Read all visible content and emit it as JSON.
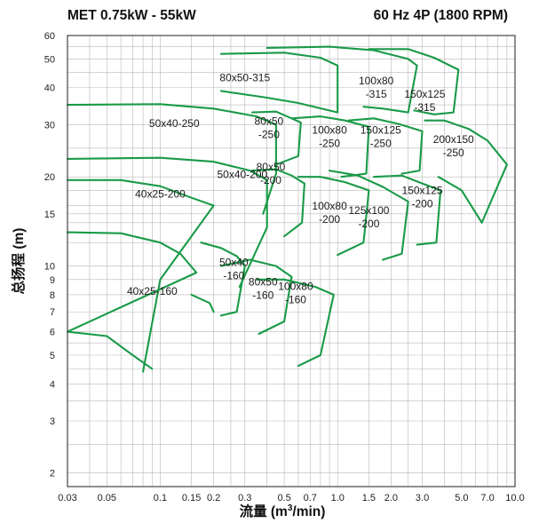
{
  "header": {
    "title_left": "MET  0.75kW - 55kW",
    "title_right": "60 Hz 4P (1800 RPM)"
  },
  "chart_data": {
    "type": "line",
    "title": "MET  0.75kW - 55kW",
    "subtitle": "60 Hz 4P (1800 RPM)",
    "xlabel": "流量 (m³/min)",
    "ylabel": "总扬程 (m)",
    "x_scale": "log",
    "y_scale": "log",
    "xlim": [
      0.03,
      10.0
    ],
    "ylim": [
      1.8,
      60
    ],
    "grid": true,
    "x_ticks": [
      {
        "v": 0.03,
        "label": "0.03"
      },
      {
        "v": 0.05,
        "label": "0.05"
      },
      {
        "v": 0.1,
        "label": "0.1"
      },
      {
        "v": 0.15,
        "label": "0.15"
      },
      {
        "v": 0.2,
        "label": "0.2"
      },
      {
        "v": 0.3,
        "label": "0.3"
      },
      {
        "v": 0.5,
        "label": "0.5"
      },
      {
        "v": 0.7,
        "label": "0.7"
      },
      {
        "v": 1.0,
        "label": "1.0"
      },
      {
        "v": 1.5,
        "label": "1.5"
      },
      {
        "v": 2.0,
        "label": "2.0"
      },
      {
        "v": 3.0,
        "label": "3.0"
      },
      {
        "v": 5.0,
        "label": "5.0"
      },
      {
        "v": 7.0,
        "label": "7.0"
      },
      {
        "v": 10.0,
        "label": "10.0"
      }
    ],
    "x_grid": [
      0.03,
      0.04,
      0.05,
      0.06,
      0.07,
      0.08,
      0.09,
      0.1,
      0.15,
      0.2,
      0.25,
      0.3,
      0.4,
      0.5,
      0.6,
      0.7,
      0.8,
      0.9,
      1.0,
      1.5,
      2.0,
      2.5,
      3.0,
      4.0,
      5.0,
      6.0,
      7.0,
      8.0,
      9.0,
      10.0
    ],
    "y_ticks": [
      {
        "v": 2,
        "label": "2"
      },
      {
        "v": 3,
        "label": "3"
      },
      {
        "v": 4,
        "label": "4"
      },
      {
        "v": 5,
        "label": "5"
      },
      {
        "v": 6,
        "label": "6"
      },
      {
        "v": 7,
        "label": "7"
      },
      {
        "v": 8,
        "label": "8"
      },
      {
        "v": 9,
        "label": "9"
      },
      {
        "v": 10,
        "label": "10"
      },
      {
        "v": 15,
        "label": "15"
      },
      {
        "v": 20,
        "label": "20"
      },
      {
        "v": 30,
        "label": "30"
      },
      {
        "v": 40,
        "label": "40"
      },
      {
        "v": 50,
        "label": "50"
      },
      {
        "v": 60,
        "label": "60"
      }
    ],
    "y_grid": [
      2,
      2.5,
      3,
      3.5,
      4,
      4.5,
      5,
      5.5,
      6,
      7,
      8,
      9,
      10,
      12,
      14,
      15,
      16,
      18,
      20,
      25,
      30,
      35,
      40,
      45,
      50,
      55,
      60
    ],
    "colors": {
      "curve": "#1a9a48",
      "grid": "#b8b8b8",
      "frame": "#333333"
    },
    "series": [
      {
        "name": "40x25-160",
        "label_lines": [
          "40x25-160"
        ],
        "label_at": [
          0.09,
          8.0
        ],
        "top": [
          [
            0.03,
            13.0
          ],
          [
            0.06,
            12.9
          ],
          [
            0.1,
            12.0
          ],
          [
            0.13,
            11.0
          ],
          [
            0.16,
            9.5
          ]
        ],
        "bottom": [
          [
            0.03,
            6.0
          ],
          [
            0.05,
            5.8
          ],
          [
            0.07,
            5.0
          ],
          [
            0.09,
            4.5
          ]
        ]
      },
      {
        "name": "40x25-200",
        "label_lines": [
          "40x25-200"
        ],
        "label_at": [
          0.1,
          17.0
        ],
        "top": [
          [
            0.03,
            19.5
          ],
          [
            0.06,
            19.5
          ],
          [
            0.1,
            18.6
          ],
          [
            0.15,
            17.0
          ],
          [
            0.2,
            16.0
          ]
        ],
        "bottom": [
          [
            0.1,
            9.0
          ],
          [
            0.08,
            4.4
          ]
        ]
      },
      {
        "name": "50x40-200",
        "label_lines": [
          "50x40-200"
        ],
        "label_at": [
          0.29,
          19.8
        ],
        "top": [
          [
            0.03,
            23.0
          ],
          [
            0.1,
            23.2
          ],
          [
            0.2,
            22.5
          ],
          [
            0.32,
            21.0
          ],
          [
            0.4,
            19.5
          ]
        ],
        "bottom": [
          [
            0.4,
            13.5
          ],
          [
            0.28,
            8.5
          ]
        ]
      },
      {
        "name": "50x40-250",
        "label_lines": [
          "50x40-250"
        ],
        "label_at": [
          0.12,
          29.5
        ],
        "top": [
          [
            0.03,
            35.0
          ],
          [
            0.1,
            35.2
          ],
          [
            0.2,
            34.0
          ],
          [
            0.35,
            32.0
          ],
          [
            0.45,
            30.0
          ]
        ],
        "bottom": [
          [
            0.45,
            20.5
          ],
          [
            0.38,
            15.0
          ]
        ]
      },
      {
        "name": "40x25-160-lower",
        "label_lines": [],
        "label_at": null,
        "top": [
          [
            0.15,
            8.0
          ],
          [
            0.19,
            7.5
          ],
          [
            0.2,
            7.0
          ]
        ],
        "bottom": []
      },
      {
        "name": "50x40-160",
        "label_lines": [
          "50x40",
          "-160"
        ],
        "label_at": [
          0.26,
          10.0
        ],
        "top": [
          [
            0.17,
            12.0
          ],
          [
            0.22,
            11.5
          ],
          [
            0.27,
            10.8
          ],
          [
            0.3,
            10.0
          ]
        ],
        "bottom": [
          [
            0.27,
            7.0
          ],
          [
            0.22,
            6.8
          ]
        ]
      },
      {
        "name": "80x50-160",
        "label_lines": [
          "80x50",
          "-160"
        ],
        "label_at": [
          0.38,
          8.6
        ],
        "top": [
          [
            0.22,
            10.0
          ],
          [
            0.32,
            10.5
          ],
          [
            0.45,
            10.0
          ],
          [
            0.55,
            9.2
          ]
        ],
        "bottom": [
          [
            0.5,
            6.5
          ],
          [
            0.36,
            5.9
          ]
        ]
      },
      {
        "name": "100x80-160",
        "label_lines": [
          "100x80",
          "-160"
        ],
        "label_at": [
          0.58,
          8.3
        ],
        "top": [
          [
            0.35,
            9.0
          ],
          [
            0.5,
            9.0
          ],
          [
            0.75,
            8.5
          ],
          [
            0.95,
            8.0
          ]
        ],
        "bottom": [
          [
            0.8,
            5.0
          ],
          [
            0.6,
            4.6
          ]
        ]
      },
      {
        "name": "80x50-200",
        "label_lines": [
          "80x50",
          "-200"
        ],
        "label_at": [
          0.42,
          21.0
        ],
        "top": [
          [
            0.33,
            21.0
          ],
          [
            0.45,
            21.2
          ],
          [
            0.55,
            20.2
          ],
          [
            0.65,
            19.0
          ]
        ],
        "bottom": [
          [
            0.63,
            14.0
          ],
          [
            0.5,
            12.6
          ]
        ]
      },
      {
        "name": "100x80-200",
        "label_lines": [
          "100x80",
          "-200"
        ],
        "label_at": [
          0.9,
          15.5
        ],
        "top": [
          [
            0.6,
            20.0
          ],
          [
            0.8,
            20.0
          ],
          [
            1.1,
            19.2
          ],
          [
            1.5,
            18.0
          ]
        ],
        "bottom": [
          [
            1.4,
            12.0
          ],
          [
            1.0,
            10.9
          ]
        ]
      },
      {
        "name": "125x100-200",
        "label_lines": [
          "125x100",
          "-200"
        ],
        "label_at": [
          1.5,
          15.0
        ],
        "top": [
          [
            0.9,
            21.0
          ],
          [
            1.3,
            20.2
          ],
          [
            1.8,
            18.5
          ],
          [
            2.5,
            16.5
          ]
        ],
        "bottom": [
          [
            2.3,
            11.0
          ],
          [
            1.8,
            10.5
          ]
        ]
      },
      {
        "name": "150x125-200",
        "label_lines": [
          "150x125",
          "-200"
        ],
        "label_at": [
          3.0,
          17.5
        ],
        "top": [
          [
            1.6,
            20.0
          ],
          [
            2.3,
            20.2
          ],
          [
            3.0,
            19.0
          ],
          [
            3.8,
            18.0
          ]
        ],
        "bottom": [
          [
            3.6,
            12.0
          ],
          [
            2.8,
            11.8
          ]
        ]
      },
      {
        "name": "80x50-250",
        "label_lines": [
          "80x50",
          "-250"
        ],
        "label_at": [
          0.41,
          30.0
        ],
        "top": [
          [
            0.33,
            33.0
          ],
          [
            0.45,
            33.2
          ],
          [
            0.55,
            31.5
          ],
          [
            0.62,
            30.5
          ]
        ],
        "bottom": [
          [
            0.6,
            23.5
          ],
          [
            0.45,
            22.0
          ]
        ]
      },
      {
        "name": "100x80-250",
        "label_lines": [
          "100x80",
          "-250"
        ],
        "label_at": [
          0.9,
          28.0
        ],
        "top": [
          [
            0.55,
            31.5
          ],
          [
            0.8,
            32.0
          ],
          [
            1.1,
            31.0
          ],
          [
            1.5,
            29.5
          ]
        ],
        "bottom": [
          [
            1.45,
            20.5
          ],
          [
            1.05,
            20.0
          ]
        ]
      },
      {
        "name": "150x125-250",
        "label_lines": [
          "150x125",
          "-250"
        ],
        "label_at": [
          1.75,
          28.0
        ],
        "top": [
          [
            1.15,
            31.0
          ],
          [
            1.6,
            31.5
          ],
          [
            2.2,
            30.2
          ],
          [
            3.0,
            28.5
          ]
        ],
        "bottom": [
          [
            2.9,
            21.0
          ],
          [
            2.3,
            20.5
          ]
        ]
      },
      {
        "name": "200x150-250",
        "label_lines": [
          "200x150",
          "-250"
        ],
        "label_at": [
          4.5,
          26.0
        ],
        "top": [
          [
            3.1,
            31.0
          ],
          [
            4.0,
            31.0
          ],
          [
            5.5,
            29.0
          ],
          [
            7.0,
            26.5
          ],
          [
            9.0,
            22.0
          ]
        ],
        "bottom": [
          [
            6.5,
            14.0
          ],
          [
            5.0,
            18.0
          ],
          [
            3.7,
            20.0
          ]
        ]
      },
      {
        "name": "80x50-315",
        "label_lines": [
          "80x50-315"
        ],
        "label_at": [
          0.3,
          42.0
        ],
        "top": [
          [
            0.22,
            52.0
          ],
          [
            0.5,
            52.5
          ],
          [
            0.8,
            50.5
          ],
          [
            1.0,
            47.5
          ]
        ],
        "bottom": [
          [
            1.0,
            33.0
          ],
          [
            0.6,
            35.5
          ],
          [
            0.4,
            37.0
          ],
          [
            0.22,
            39.0
          ]
        ]
      },
      {
        "name": "100x80-315",
        "label_lines": [
          "100x80",
          "-315"
        ],
        "label_at": [
          1.65,
          41.0
        ],
        "top": [
          [
            0.4,
            54.5
          ],
          [
            0.9,
            55.0
          ],
          [
            1.6,
            53.5
          ],
          [
            2.5,
            50.0
          ],
          [
            2.8,
            47.5
          ]
        ],
        "bottom": [
          [
            2.5,
            33.0
          ],
          [
            1.8,
            34.0
          ],
          [
            1.4,
            34.5
          ]
        ]
      },
      {
        "name": "150x125-315",
        "label_lines": [
          "150x125",
          "-315"
        ],
        "label_at": [
          3.1,
          37.0
        ],
        "top": [
          [
            1.5,
            54.0
          ],
          [
            2.5,
            54.0
          ],
          [
            3.5,
            50.5
          ],
          [
            4.8,
            46.0
          ]
        ],
        "bottom": [
          [
            4.5,
            33.0
          ],
          [
            3.5,
            32.5
          ],
          [
            2.7,
            33.5
          ]
        ]
      }
    ]
  }
}
